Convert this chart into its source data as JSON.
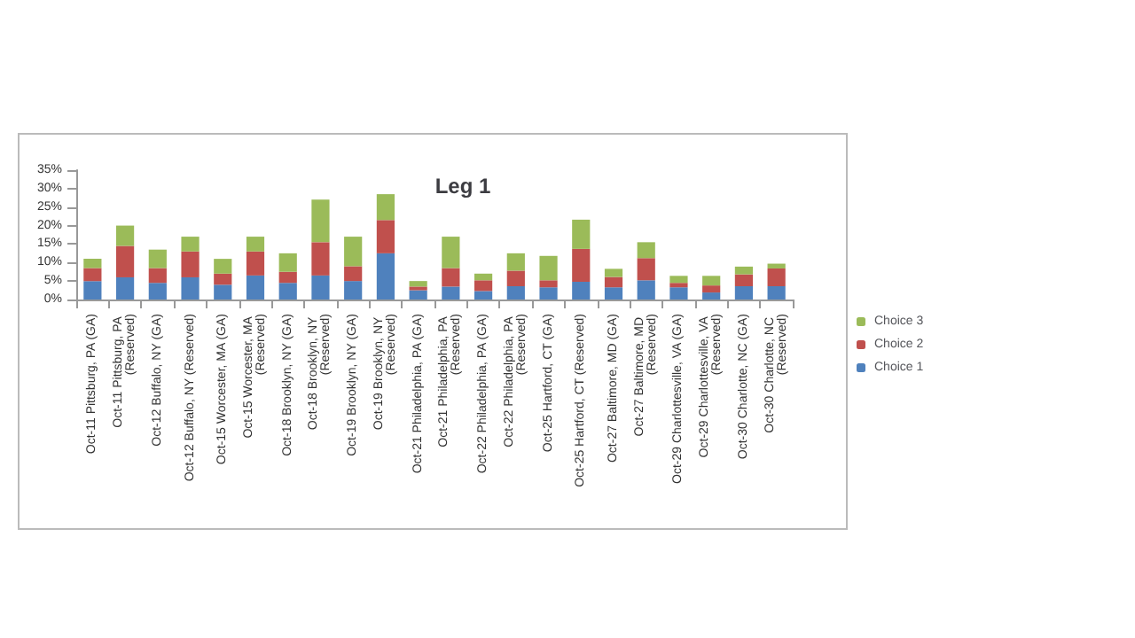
{
  "chart_data": {
    "type": "bar",
    "title": "Leg 1",
    "stacked": true,
    "grid": false,
    "legend": "right",
    "categories": [
      "Oct-11 Pittsburg, PA (GA)",
      "Oct-11 Pittsburg, PA (Reserved)",
      "Oct-12 Buffalo, NY (GA)",
      "Oct-12 Buffalo, NY (Reserved)",
      "Oct-15 Worcester, MA (GA)",
      "Oct-15 Worcester, MA (Reserved)",
      "Oct-18 Brooklyn, NY (GA)",
      "Oct-18 Brooklyn, NY (Reserved)",
      "Oct-19 Brooklyn, NY (GA)",
      "Oct-19 Brooklyn, NY (Reserved)",
      "Oct-21 Philadelphia, PA (GA)",
      "Oct-21 Philadelphia, PA (Reserved)",
      "Oct-22 Philadelphia, PA (GA)",
      "Oct-22 Philadelphia, PA (Reserved)",
      "Oct-25 Hartford, CT (GA)",
      "Oct-25 Hartford, CT (Reserved)",
      "Oct-27 Baltimore, MD (GA)",
      "Oct-27 Baltimore, MD (Reserved)",
      "Oct-29 Charlottesville, VA (GA)",
      "Oct-29 Charlottesville, VA (Reserved)",
      "Oct-30 Charlotte, NC (GA)",
      "Oct-30 Charlotte, NC (Reserved)"
    ],
    "series": [
      {
        "name": "Choice 1",
        "color": "#4f81bd",
        "values": [
          5,
          6,
          4.5,
          6,
          4,
          6.5,
          4.5,
          6.5,
          5,
          12.5,
          2.5,
          3.5,
          2.3,
          3.6,
          3.3,
          4.8,
          3.3,
          5.2,
          3.3,
          1.9,
          3.6,
          3.6
        ]
      },
      {
        "name": "Choice 2",
        "color": "#c0504d",
        "values": [
          3.5,
          8.5,
          4,
          7,
          3,
          6.5,
          3,
          9,
          4,
          9,
          1,
          5,
          2.9,
          4.2,
          1.9,
          8.9,
          2.8,
          6,
          1.2,
          1.9,
          3.2,
          4.8
        ]
      },
      {
        "name": "Choice 3",
        "color": "#9bbb59",
        "values": [
          2.5,
          5.5,
          5,
          4,
          4,
          4,
          5,
          11.5,
          8,
          7,
          1.5,
          8.5,
          1.8,
          4.7,
          6.6,
          7.9,
          2.2,
          4.3,
          1.9,
          2.6,
          2.1,
          1.3
        ]
      }
    ],
    "ylim": [
      0,
      35
    ],
    "yticks": [
      {
        "value": 0,
        "label": "0%"
      },
      {
        "value": 5,
        "label": "5%"
      },
      {
        "value": 10,
        "label": "10%"
      },
      {
        "value": 15,
        "label": "15%"
      },
      {
        "value": 20,
        "label": "20%"
      },
      {
        "value": 25,
        "label": "25%"
      },
      {
        "value": 30,
        "label": "30%"
      },
      {
        "value": 35,
        "label": "35%"
      }
    ]
  }
}
